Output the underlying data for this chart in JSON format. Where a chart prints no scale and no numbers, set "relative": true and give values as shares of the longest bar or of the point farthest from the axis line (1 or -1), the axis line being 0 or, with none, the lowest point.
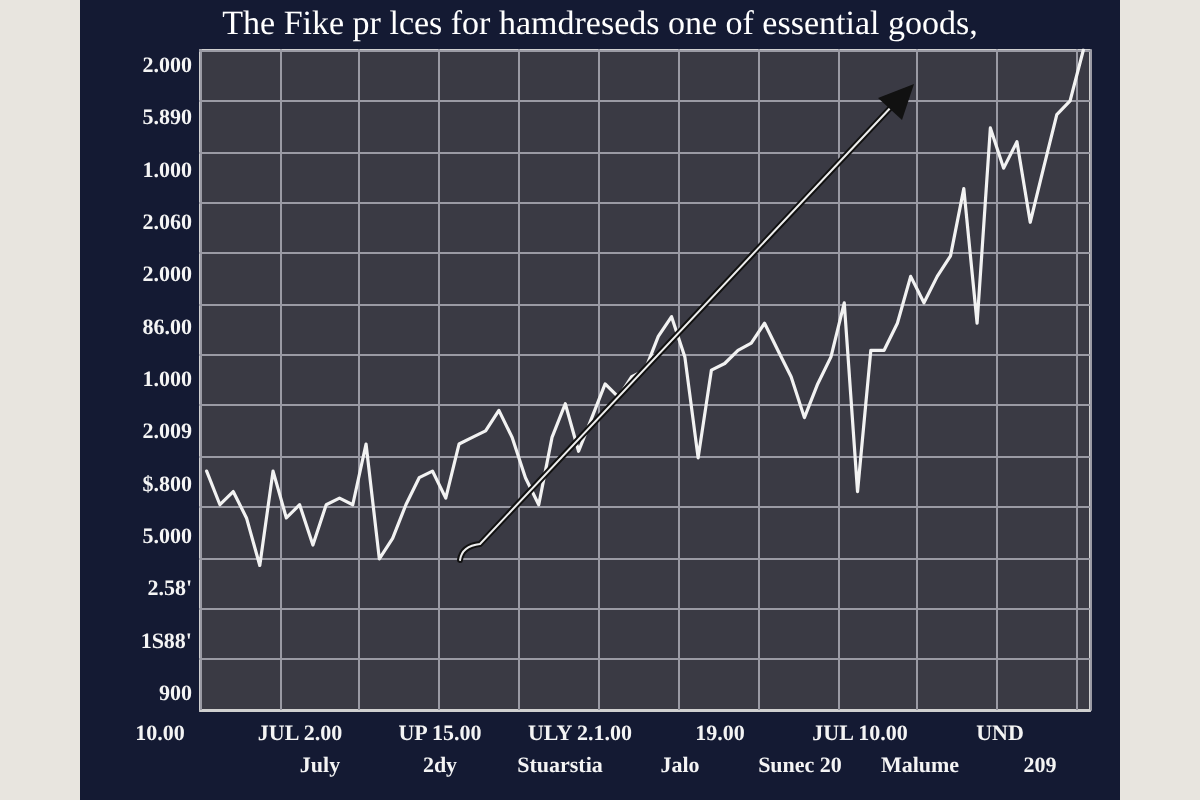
{
  "chart_data": {
    "type": "line",
    "title": "The Fike pr lces for hamdreseds one of essential goods,",
    "relative": true,
    "grid": true,
    "marker": "none",
    "line_style": "solid",
    "categories": [
      null,
      null,
      null,
      null,
      null,
      null,
      null,
      null,
      null,
      null,
      null,
      null,
      null,
      null,
      null,
      null,
      null,
      null,
      null,
      null,
      null,
      null,
      null,
      null,
      null,
      null,
      null,
      null,
      null,
      null,
      null,
      null,
      null,
      null,
      null,
      null,
      null,
      null,
      null,
      null,
      null,
      null,
      null,
      null,
      null,
      null,
      null,
      null,
      null,
      null,
      null,
      null,
      null,
      null,
      null,
      null,
      null,
      null,
      null,
      null,
      null,
      null,
      null,
      null,
      null,
      null,
      null
    ],
    "series": [
      {
        "color": "#f2f2f2",
        "values": [
          0.362,
          0.311,
          0.331,
          0.291,
          0.219,
          0.362,
          0.291,
          0.311,
          0.25,
          0.311,
          0.321,
          0.311,
          0.403,
          0.229,
          0.26,
          0.311,
          0.352,
          0.362,
          0.321,
          0.403,
          0.413,
          0.423,
          0.454,
          0.413,
          0.352,
          0.311,
          0.413,
          0.464,
          0.392,
          0.443,
          0.494,
          0.474,
          0.505,
          0.515,
          0.566,
          0.596,
          0.535,
          0.382,
          0.515,
          0.525,
          0.545,
          0.556,
          0.586,
          0.545,
          0.505,
          0.443,
          0.494,
          0.535,
          0.617,
          0.331,
          0.545,
          0.545,
          0.586,
          0.657,
          0.617,
          0.657,
          0.688,
          0.79,
          0.586,
          0.882,
          0.821,
          0.861,
          0.739,
          0.821,
          0.902,
          0.923,
          1
        ]
      }
    ],
    "annotations": [
      "2.000",
      "5.890",
      "1.000",
      "2.060",
      "2.000",
      "86.00",
      "1.000",
      "2.009",
      "$.800",
      "5.000",
      "2.58'",
      "1S88'",
      "900",
      "10.00",
      "JUL 2.00",
      "UP 15.00",
      "ULY 2.1.00",
      "19.00",
      "JUL 10.00",
      "UND",
      "July",
      "2dy",
      "Stuarstia",
      "Jalo",
      "Sunec 20",
      "Malume",
      "209"
    ]
  }
}
